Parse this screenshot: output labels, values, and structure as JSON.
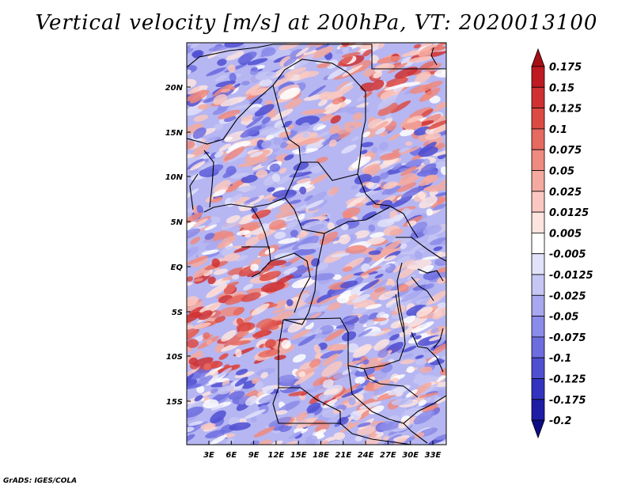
{
  "title": "Vertical velocity [m/s] at 200hPa, VT: 2020013100",
  "credit": "GrADS: IGES/COLA",
  "lat_ticks": [
    "20N",
    "15N",
    "10N",
    "5N",
    "EQ",
    "5S",
    "10S",
    "15S"
  ],
  "lon_ticks": [
    "3E",
    "6E",
    "9E",
    "12E",
    "15E",
    "18E",
    "21E",
    "24E",
    "27E",
    "30E",
    "33E"
  ],
  "colorbar": {
    "labels": [
      "0.175",
      "0.15",
      "0.125",
      "0.1",
      "0.075",
      "0.05",
      "0.025",
      "0.0125",
      "0.005",
      "-0.005",
      "-0.0125",
      "-0.025",
      "-0.05",
      "-0.075",
      "-0.1",
      "-0.125",
      "-0.175",
      "-0.2"
    ],
    "colors": [
      "#a50f15",
      "#bd1a22",
      "#cf3133",
      "#dc4a44",
      "#e56a60",
      "#ee8a7f",
      "#f5aaa0",
      "#fac8c0",
      "#fde4df",
      "#ffffff",
      "#e2e2fa",
      "#c6c6f5",
      "#a8a8f0",
      "#8b8be9",
      "#6d6de0",
      "#4f4fd2",
      "#3333c0",
      "#1d1da6",
      "#0c0c85"
    ]
  }
}
